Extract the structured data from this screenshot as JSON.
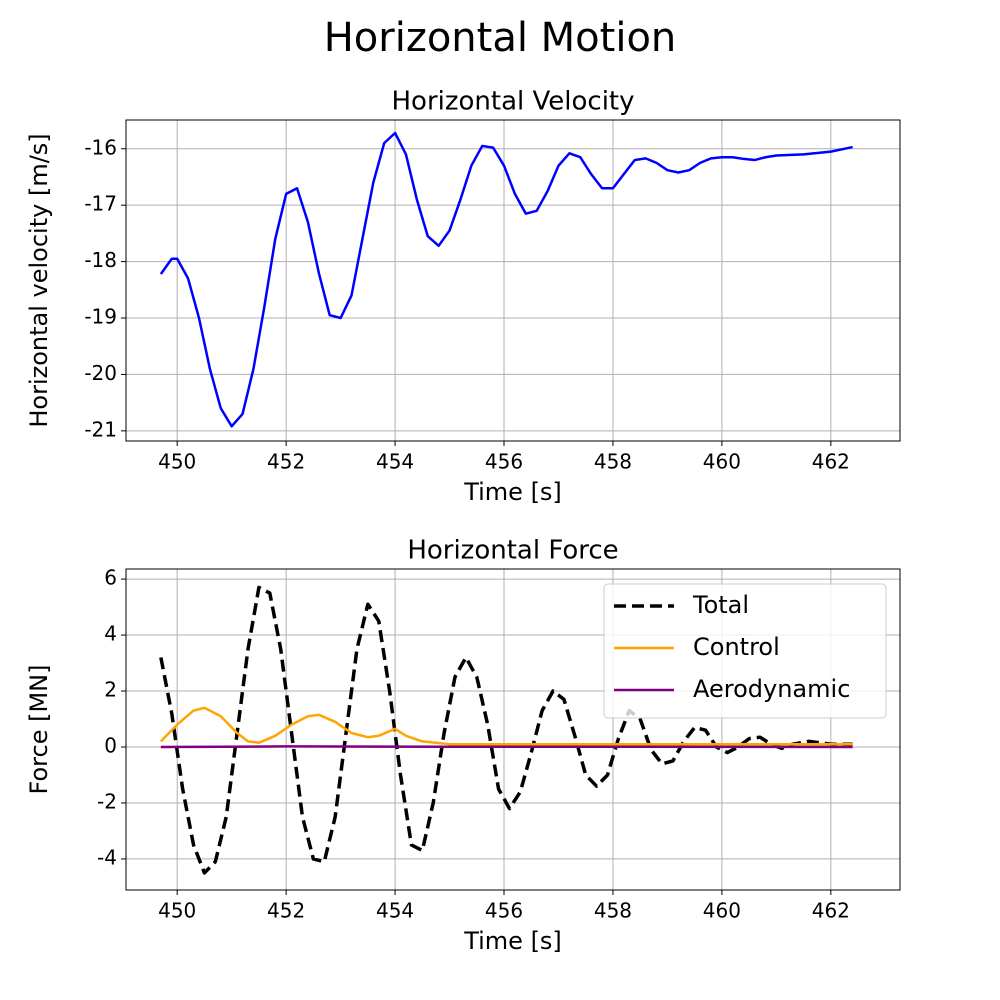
{
  "title": "Horizontal Motion",
  "chart_data": [
    {
      "type": "line",
      "title": "Horizontal Velocity",
      "xlabel": "Time [s]",
      "ylabel": "Horizontal velocity [m/s]",
      "color": "#0000ff",
      "x": [
        449.7,
        449.9,
        450.0,
        450.2,
        450.4,
        450.6,
        450.8,
        451.0,
        451.2,
        451.4,
        451.6,
        451.8,
        452.0,
        452.2,
        452.4,
        452.6,
        452.8,
        453.0,
        453.2,
        453.4,
        453.6,
        453.8,
        454.0,
        454.2,
        454.4,
        454.6,
        454.8,
        455.0,
        455.2,
        455.4,
        455.6,
        455.8,
        456.0,
        456.2,
        456.4,
        456.6,
        456.8,
        457.0,
        457.2,
        457.4,
        457.6,
        457.8,
        458.0,
        458.2,
        458.4,
        458.6,
        458.8,
        459.0,
        459.2,
        459.4,
        459.6,
        459.8,
        460.0,
        460.2,
        460.4,
        460.6,
        460.8,
        461.0,
        461.5,
        462.0,
        462.4
      ],
      "values": [
        -18.22,
        -17.95,
        -17.95,
        -18.3,
        -19.0,
        -19.9,
        -20.6,
        -20.92,
        -20.7,
        -19.9,
        -18.8,
        -17.6,
        -16.8,
        -16.7,
        -17.3,
        -18.2,
        -18.95,
        -19.0,
        -18.6,
        -17.6,
        -16.6,
        -15.9,
        -15.72,
        -16.1,
        -16.9,
        -17.55,
        -17.72,
        -17.45,
        -16.9,
        -16.3,
        -15.95,
        -15.98,
        -16.3,
        -16.8,
        -17.15,
        -17.1,
        -16.75,
        -16.3,
        -16.08,
        -16.15,
        -16.45,
        -16.7,
        -16.7,
        -16.45,
        -16.2,
        -16.17,
        -16.25,
        -16.38,
        -16.42,
        -16.38,
        -16.25,
        -16.17,
        -16.15,
        -16.15,
        -16.18,
        -16.2,
        -16.15,
        -16.12,
        -16.1,
        -16.05,
        -15.97
      ],
      "xlim": [
        449.06,
        463.27
      ],
      "xticks": [
        450,
        452,
        454,
        456,
        458,
        460,
        462
      ],
      "ylim": [
        -21.18,
        -15.49
      ],
      "yticks": [
        -21,
        -20,
        -19,
        -18,
        -17,
        -16
      ],
      "grid": true
    },
    {
      "type": "line",
      "title": "Horizontal Force",
      "xlabel": "Time [s]",
      "ylabel": "Force [MN]",
      "legend": "upper right",
      "series": [
        {
          "name": "Total",
          "color": "#000000",
          "linestyle": "dashed",
          "x": [
            449.7,
            449.9,
            450.1,
            450.3,
            450.5,
            450.7,
            450.9,
            451.1,
            451.3,
            451.5,
            451.7,
            451.9,
            452.1,
            452.3,
            452.5,
            452.7,
            452.9,
            453.1,
            453.3,
            453.5,
            453.7,
            453.9,
            454.1,
            454.3,
            454.5,
            454.7,
            454.9,
            455.1,
            455.3,
            455.5,
            455.7,
            455.9,
            456.1,
            456.3,
            456.5,
            456.7,
            456.9,
            457.1,
            457.3,
            457.5,
            457.7,
            457.9,
            458.1,
            458.3,
            458.5,
            458.7,
            458.9,
            459.1,
            459.3,
            459.5,
            459.7,
            459.9,
            460.1,
            460.3,
            460.5,
            460.7,
            460.9,
            461.1,
            461.3,
            461.6,
            462.0,
            462.4
          ],
          "values": [
            3.2,
            1.2,
            -1.5,
            -3.5,
            -4.5,
            -4.1,
            -2.5,
            0.5,
            3.5,
            5.7,
            5.5,
            3.5,
            0.5,
            -2.5,
            -4.0,
            -4.1,
            -2.5,
            0.5,
            3.5,
            5.1,
            4.5,
            2.0,
            -1.0,
            -3.5,
            -3.7,
            -2.0,
            0.5,
            2.5,
            3.2,
            2.5,
            0.8,
            -1.5,
            -2.2,
            -1.6,
            -0.2,
            1.3,
            2.0,
            1.7,
            0.4,
            -1.0,
            -1.4,
            -1.0,
            0.3,
            1.3,
            1.0,
            -0.1,
            -0.6,
            -0.5,
            0.2,
            0.7,
            0.6,
            0.0,
            -0.2,
            0.0,
            0.3,
            0.35,
            0.1,
            -0.05,
            0.1,
            0.2,
            0.1,
            0.1
          ]
        },
        {
          "name": "Control",
          "color": "#ffa500",
          "linestyle": "solid",
          "x": [
            449.7,
            450.0,
            450.3,
            450.5,
            450.8,
            451.1,
            451.3,
            451.5,
            451.8,
            452.1,
            452.4,
            452.6,
            452.9,
            453.2,
            453.5,
            453.7,
            454.0,
            454.2,
            454.5,
            455.0,
            456.0,
            458.0,
            460.0,
            462.4
          ],
          "values": [
            0.2,
            0.8,
            1.3,
            1.4,
            1.1,
            0.5,
            0.2,
            0.15,
            0.4,
            0.8,
            1.1,
            1.15,
            0.9,
            0.5,
            0.35,
            0.4,
            0.65,
            0.4,
            0.2,
            0.1,
            0.1,
            0.1,
            0.1,
            0.1
          ]
        },
        {
          "name": "Aerodynamic",
          "color": "#800080",
          "linestyle": "solid",
          "x": [
            449.7,
            452.0,
            455.0,
            458.0,
            462.4
          ],
          "values": [
            0.0,
            0.02,
            0.01,
            0.01,
            0.0
          ]
        }
      ],
      "xlim": [
        449.06,
        463.27
      ],
      "xticks": [
        450,
        452,
        454,
        456,
        458,
        460,
        462
      ],
      "ylim": [
        -5.11,
        6.36
      ],
      "yticks": [
        -4,
        -2,
        0,
        2,
        4,
        6
      ],
      "grid": true
    }
  ]
}
